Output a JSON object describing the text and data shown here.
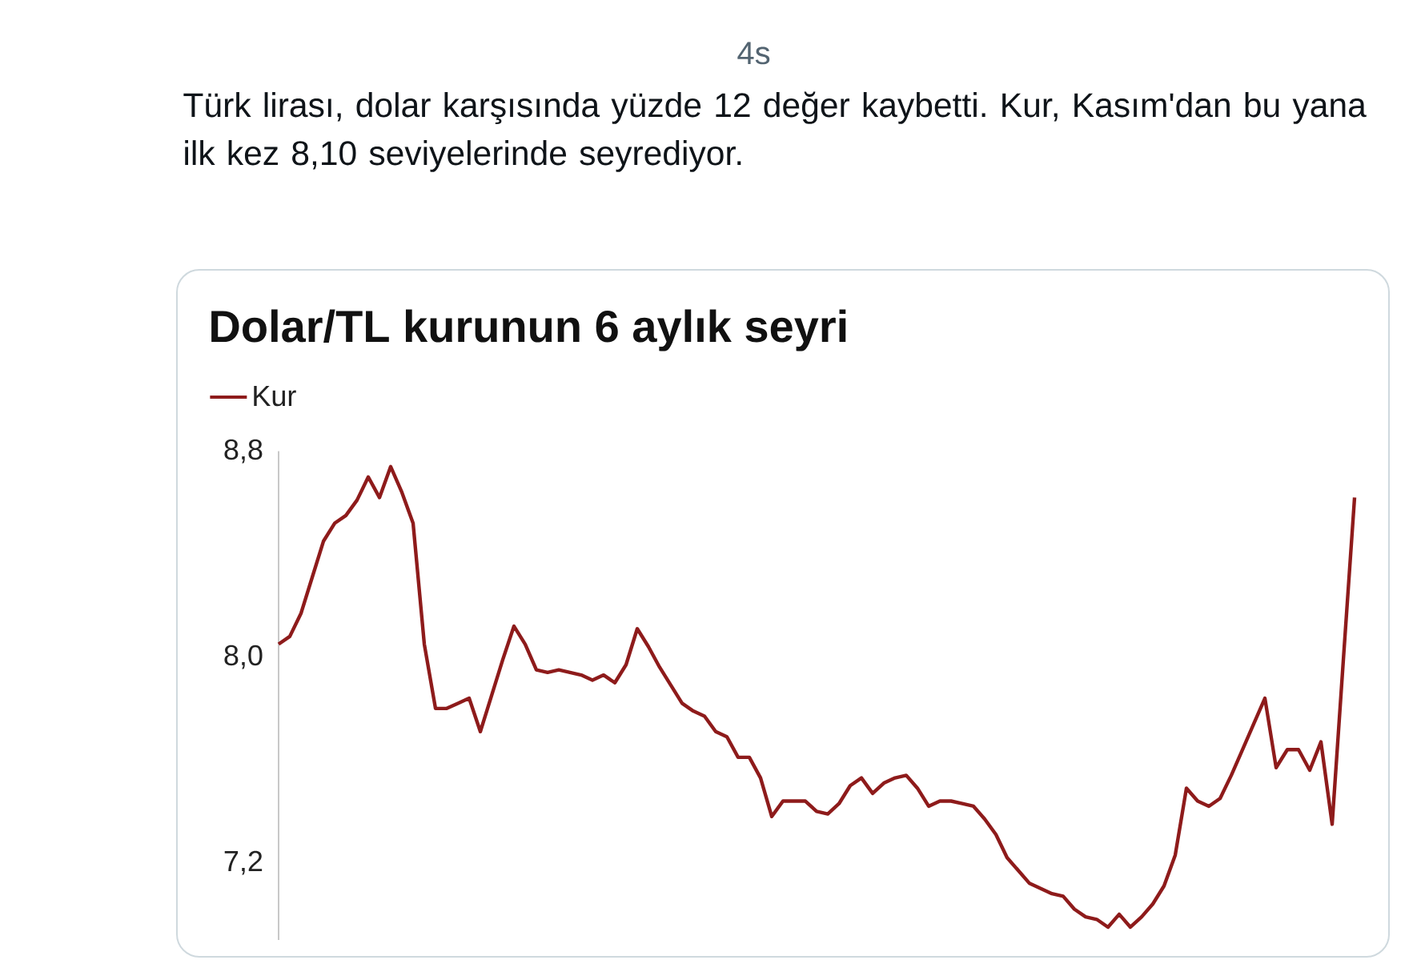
{
  "chart_data": {
    "type": "line",
    "title": "Dolar/TL kurunun 6 aylık seyri",
    "annotations": [
      "Türk lirası, dolar karşısında yüzde 12 değer kaybetti. Kur, Kasım'dan bu yana ilk kez 8,10 seviyelerinde seyrediyor.",
      "4s"
    ],
    "categories": [
      null,
      null,
      null,
      null,
      null,
      null,
      null,
      null,
      null,
      null,
      null,
      null,
      null,
      null,
      null,
      null,
      null,
      null,
      null,
      null,
      null,
      null,
      null,
      null,
      null,
      null,
      null,
      null,
      null,
      null,
      null,
      null,
      null,
      null,
      null,
      null,
      null,
      null,
      null,
      null,
      null,
      null,
      null,
      null,
      null,
      null,
      null,
      null,
      null,
      null,
      null,
      null,
      null,
      null,
      null,
      null,
      null,
      null,
      null,
      null,
      null,
      null,
      null,
      null,
      null,
      null,
      null,
      null,
      null,
      null,
      null,
      null,
      null,
      null,
      null,
      null,
      null,
      null,
      null,
      null,
      null,
      null,
      null,
      null,
      null,
      null,
      null,
      null,
      null,
      null,
      null,
      null,
      null,
      null,
      null,
      null,
      null
    ],
    "series": [
      {
        "name": "Kur",
        "color": "#8e1b1b",
        "values": [
          8.05,
          8.08,
          8.17,
          8.31,
          8.45,
          8.52,
          8.55,
          8.61,
          8.7,
          8.62,
          8.74,
          8.64,
          8.52,
          8.05,
          7.8,
          7.8,
          7.82,
          7.84,
          7.71,
          7.85,
          7.99,
          8.12,
          8.05,
          7.95,
          7.94,
          7.95,
          7.94,
          7.93,
          7.91,
          7.93,
          7.9,
          7.97,
          8.11,
          8.04,
          7.96,
          7.89,
          7.82,
          7.79,
          7.77,
          7.71,
          7.69,
          7.61,
          7.61,
          7.53,
          7.38,
          7.44,
          7.44,
          7.44,
          7.4,
          7.39,
          7.43,
          7.5,
          7.53,
          7.47,
          7.51,
          7.53,
          7.54,
          7.49,
          7.42,
          7.44,
          7.44,
          7.43,
          7.42,
          7.37,
          7.31,
          7.22,
          7.17,
          7.12,
          7.1,
          7.08,
          7.07,
          7.02,
          6.99,
          6.98,
          6.95,
          7.0,
          6.95,
          6.99,
          7.04,
          7.11,
          7.23,
          7.49,
          7.44,
          7.42,
          7.45,
          7.54,
          7.64,
          7.74,
          7.84,
          7.57,
          7.64,
          7.64,
          7.56,
          7.67,
          7.35,
          7.99,
          8.62
        ]
      }
    ],
    "ylim": [
      6.9,
      8.8
    ],
    "yticks": [
      {
        "value": 8.8,
        "label": "8,8"
      },
      {
        "value": 8.0,
        "label": "8,0"
      },
      {
        "value": 7.2,
        "label": "7,2"
      }
    ],
    "legend": "top left",
    "tick_labels": "y",
    "line_style": "solid"
  }
}
